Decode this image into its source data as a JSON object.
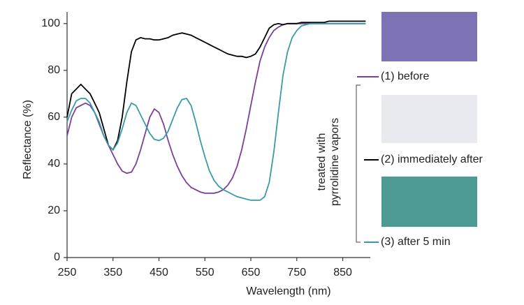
{
  "chart_data": {
    "type": "line",
    "xlabel": "Wavelength (nm)",
    "ylabel": "Reflectance (%)",
    "x": [
      250,
      260,
      270,
      280,
      290,
      300,
      310,
      320,
      330,
      340,
      350,
      360,
      370,
      380,
      390,
      400,
      410,
      420,
      430,
      440,
      450,
      460,
      470,
      480,
      490,
      500,
      510,
      520,
      530,
      540,
      550,
      560,
      570,
      580,
      590,
      600,
      610,
      620,
      630,
      640,
      650,
      660,
      670,
      680,
      690,
      700,
      710,
      720,
      730,
      740,
      750,
      760,
      770,
      780,
      790,
      800,
      810,
      820,
      830,
      840,
      850,
      860,
      870,
      880,
      890,
      900
    ],
    "series": [
      {
        "name": "(1) before",
        "color": "#7b3f9b",
        "values": [
          52,
          60,
          64,
          65,
          66,
          65,
          62,
          57,
          52,
          48,
          44,
          40,
          37,
          36,
          36.5,
          40,
          46,
          53,
          60,
          63.5,
          62,
          57,
          50,
          44,
          39,
          35,
          32,
          30,
          29,
          28,
          27.5,
          27.5,
          27.5,
          28,
          29,
          31,
          34,
          39,
          46,
          55,
          65,
          75,
          84,
          90,
          94,
          97,
          98.5,
          99.5,
          100,
          100,
          100,
          100,
          100,
          100,
          100,
          100,
          100,
          100,
          100,
          100,
          100,
          100,
          100,
          100,
          100,
          100
        ]
      },
      {
        "name": "(2) immediately after",
        "color": "#000000",
        "values": [
          60,
          70,
          72,
          74,
          72,
          70,
          66,
          62,
          55,
          48,
          46,
          50,
          60,
          75,
          88,
          93,
          94,
          93.5,
          93.5,
          93,
          93,
          93.5,
          94,
          95,
          95.5,
          96,
          95.5,
          95,
          94,
          93,
          92,
          91,
          90,
          89,
          88,
          87,
          86.5,
          86,
          86,
          85.5,
          86,
          87,
          90,
          94,
          98,
          99.5,
          100,
          99.5,
          100,
          100,
          100,
          100.5,
          100.5,
          100.5,
          100.5,
          100.5,
          100.5,
          101,
          101,
          101,
          101,
          101,
          101,
          101,
          101,
          101
        ]
      },
      {
        "name": "(3) after 5 min",
        "color": "#3a9aa8",
        "values": [
          58,
          63,
          67,
          68,
          68,
          66,
          62,
          58,
          52,
          48,
          46,
          49,
          55,
          62,
          66,
          65,
          61,
          57,
          53,
          50.5,
          50,
          51,
          54,
          59,
          64,
          67.5,
          68,
          65,
          58,
          50,
          43,
          37,
          33,
          30.5,
          29,
          28,
          27,
          26,
          25.5,
          25,
          24.5,
          24.5,
          24.5,
          26,
          32,
          45,
          62,
          78,
          88,
          94,
          97,
          99,
          99.5,
          100,
          100,
          100,
          100,
          100,
          100,
          100,
          100,
          100,
          100,
          100,
          100,
          100
        ]
      }
    ],
    "annotation": [
      "treated with",
      "pyrrolidine vapors"
    ],
    "xlim": [
      250,
      910
    ],
    "ylim": [
      0,
      105
    ],
    "xticks": [
      250,
      350,
      450,
      550,
      650,
      750,
      850
    ],
    "yticks": [
      0,
      20,
      40,
      60,
      80,
      100
    ]
  }
}
